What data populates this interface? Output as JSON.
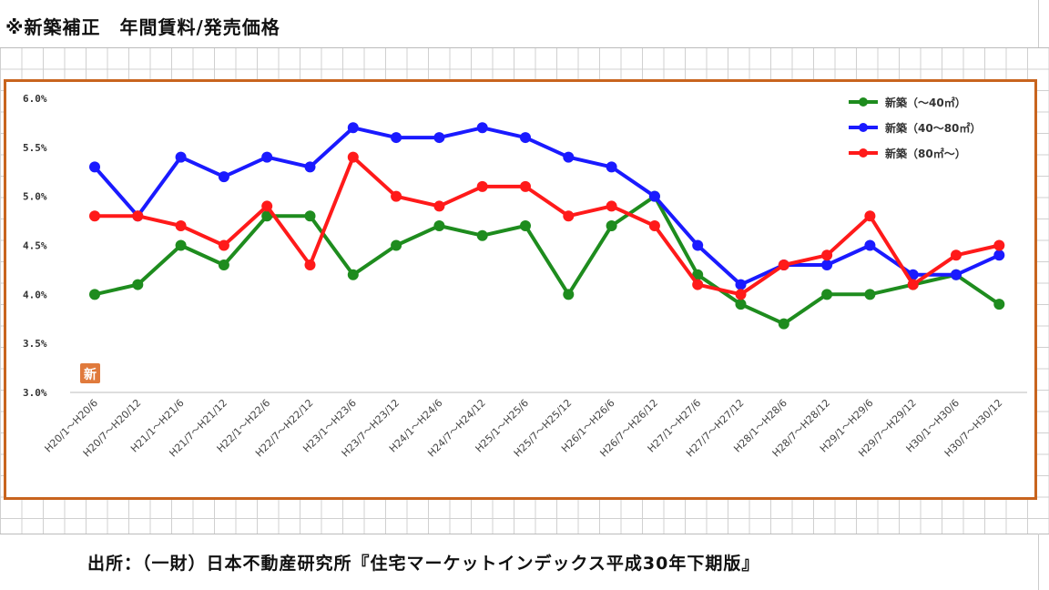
{
  "title": "※新築補正　年間賃料/発売価格",
  "source": "出所：（一財）日本不動産研究所『住宅マーケットインデックス平成30年下期版』",
  "badge": "新",
  "chart_data": {
    "type": "line",
    "ylim": [
      3.0,
      6.0
    ],
    "ytick_labels": [
      "3.0%",
      "3.5%",
      "4.0%",
      "4.5%",
      "5.0%",
      "5.5%",
      "6.0%"
    ],
    "ytick_values": [
      3.0,
      3.5,
      4.0,
      4.5,
      5.0,
      5.5,
      6.0
    ],
    "legend_position": "top-right",
    "categories": [
      "H20/1～H20/6",
      "H20/7～H20/12",
      "H21/1～H21/6",
      "H21/7～H21/12",
      "H22/1～H22/6",
      "H22/7～H22/12",
      "H23/1～H23/6",
      "H23/7～H23/12",
      "H24/1～H24/6",
      "H24/7～H24/12",
      "H25/1～H25/6",
      "H25/7～H25/12",
      "H26/1～H26/6",
      "H26/7～H26/12",
      "H27/1～H27/6",
      "H27/7～H27/12",
      "H28/1～H28/6",
      "H28/7～H28/12",
      "H29/1～H29/6",
      "H29/7～H29/12",
      "H30/1～H30/6",
      "H30/7～H30/12"
    ],
    "series": [
      {
        "name": "新築（～40㎡）",
        "color": "#1e8c1e",
        "values": [
          4.0,
          4.1,
          4.5,
          4.3,
          4.8,
          4.8,
          4.2,
          4.5,
          4.7,
          4.6,
          4.7,
          4.0,
          4.7,
          5.0,
          4.2,
          3.9,
          3.7,
          4.0,
          4.0,
          4.1,
          4.2,
          3.9
        ]
      },
      {
        "name": "新築（40～80㎡）",
        "color": "#1a1aff",
        "values": [
          5.3,
          4.8,
          5.4,
          5.2,
          5.4,
          5.3,
          5.7,
          5.6,
          5.6,
          5.7,
          5.6,
          5.4,
          5.3,
          5.0,
          4.5,
          4.1,
          4.3,
          4.3,
          4.5,
          4.2,
          4.2,
          4.4
        ]
      },
      {
        "name": "新築（80㎡～）",
        "color": "#ff1a1a",
        "values": [
          4.8,
          4.8,
          4.7,
          4.5,
          4.9,
          4.3,
          5.4,
          5.0,
          4.9,
          5.1,
          5.1,
          4.8,
          4.9,
          4.7,
          4.1,
          4.0,
          4.3,
          4.4,
          4.8,
          4.1,
          4.4,
          4.5
        ]
      }
    ]
  }
}
